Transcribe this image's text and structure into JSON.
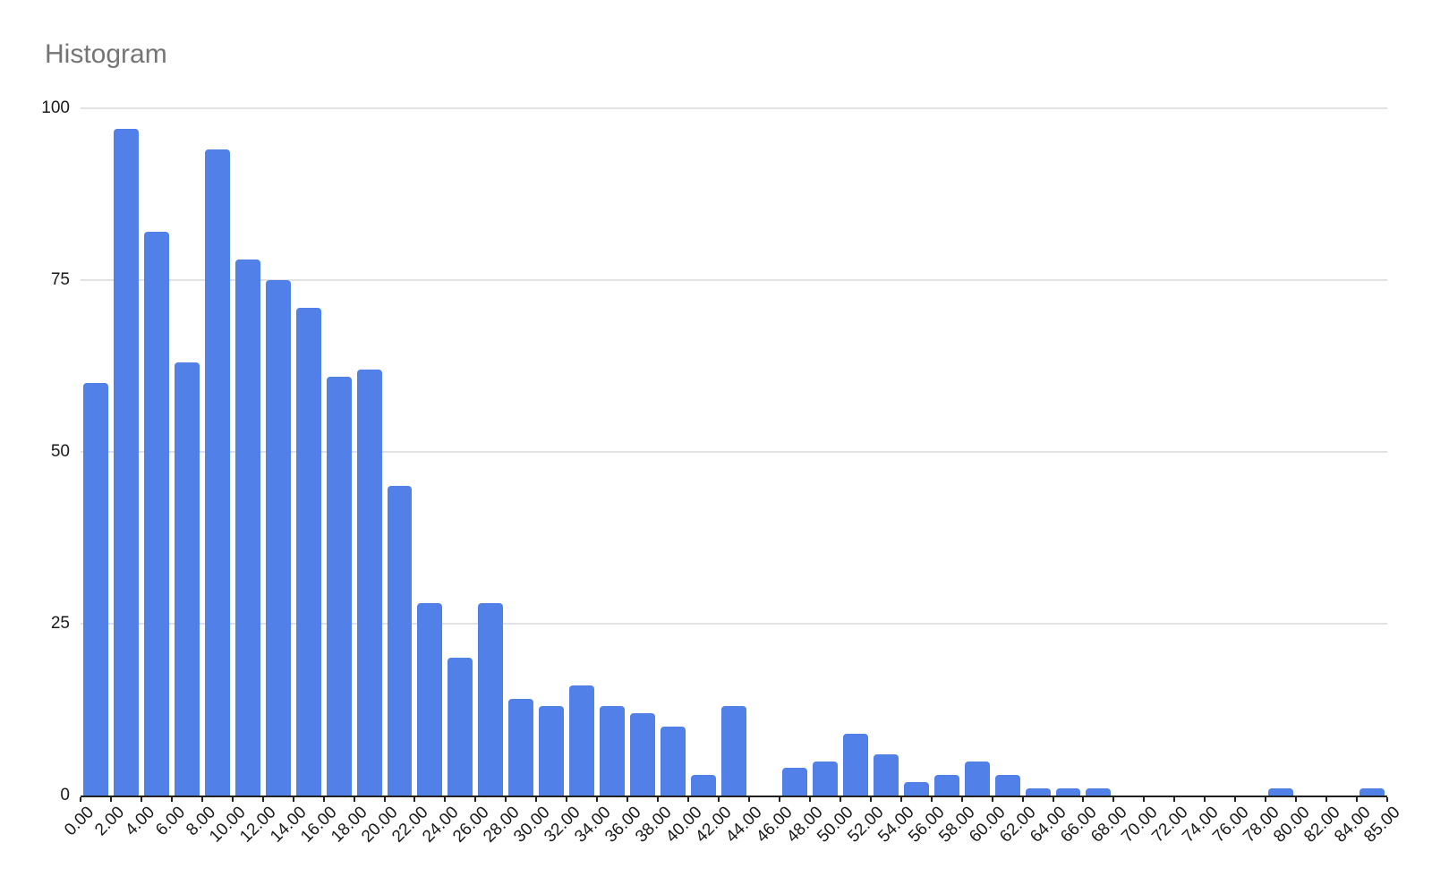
{
  "chart": {
    "bar_color": "#5181e8",
    "gridline_color": "#e2e2e2",
    "axis_color": "#212121",
    "label_color": "#1a1a1a",
    "title_color": "#757575",
    "background": "#ffffff"
  },
  "chart_data": {
    "type": "bar",
    "subtype": "histogram",
    "title": "Histogram",
    "xlabel": "",
    "ylabel": "",
    "ylim": [
      0,
      100
    ],
    "y_ticks": [
      0,
      25,
      50,
      75,
      100
    ],
    "y_tick_labels": [
      "0",
      "25",
      "50",
      "75",
      "100"
    ],
    "grid": "horizontal",
    "legend": "none",
    "x_tick_labels": [
      "0.00",
      "2.00",
      "4.00",
      "6.00",
      "8.00",
      "10.00",
      "12.00",
      "14.00",
      "16.00",
      "18.00",
      "20.00",
      "22.00",
      "24.00",
      "26.00",
      "28.00",
      "30.00",
      "32.00",
      "34.00",
      "36.00",
      "38.00",
      "40.00",
      "42.00",
      "44.00",
      "46.00",
      "48.00",
      "50.00",
      "52.00",
      "54.00",
      "56.00",
      "58.00",
      "60.00",
      "62.00",
      "64.00",
      "66.00",
      "68.00",
      "70.00",
      "72.00",
      "74.00",
      "76.00",
      "78.00",
      "80.00",
      "82.00",
      "84.00",
      "85.00"
    ],
    "bin_edges": [
      0,
      2,
      4,
      6,
      8,
      10,
      12,
      14,
      16,
      18,
      20,
      22,
      24,
      26,
      28,
      30,
      32,
      34,
      36,
      38,
      40,
      42,
      44,
      46,
      48,
      50,
      52,
      54,
      56,
      58,
      60,
      62,
      64,
      66,
      68,
      70,
      72,
      74,
      76,
      78,
      80,
      82,
      84,
      85
    ],
    "values": [
      60,
      97,
      82,
      63,
      94,
      78,
      75,
      71,
      61,
      62,
      45,
      28,
      20,
      28,
      14,
      13,
      16,
      13,
      12,
      10,
      3,
      13,
      0,
      4,
      5,
      9,
      6,
      2,
      3,
      5,
      3,
      1,
      1,
      1,
      0,
      0,
      0,
      0,
      0,
      1,
      0,
      0,
      1
    ]
  }
}
